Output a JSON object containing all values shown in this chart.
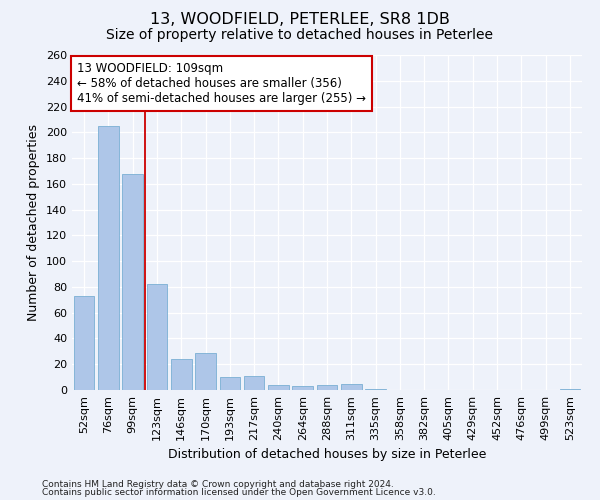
{
  "title": "13, WOODFIELD, PETERLEE, SR8 1DB",
  "subtitle": "Size of property relative to detached houses in Peterlee",
  "xlabel": "Distribution of detached houses by size in Peterlee",
  "ylabel": "Number of detached properties",
  "categories": [
    "52sqm",
    "76sqm",
    "99sqm",
    "123sqm",
    "146sqm",
    "170sqm",
    "193sqm",
    "217sqm",
    "240sqm",
    "264sqm",
    "288sqm",
    "311sqm",
    "335sqm",
    "358sqm",
    "382sqm",
    "405sqm",
    "429sqm",
    "452sqm",
    "476sqm",
    "499sqm",
    "523sqm"
  ],
  "values": [
    73,
    205,
    168,
    82,
    24,
    29,
    10,
    11,
    4,
    3,
    4,
    5,
    1,
    0,
    0,
    0,
    0,
    0,
    0,
    0,
    1
  ],
  "bar_color": "#aec6e8",
  "bar_edge_color": "#7aafd4",
  "vline_x_index": 2.5,
  "vline_color": "#cc0000",
  "annotation_text": "13 WOODFIELD: 109sqm\n← 58% of detached houses are smaller (356)\n41% of semi-detached houses are larger (255) →",
  "annotation_box_color": "#ffffff",
  "annotation_box_edge_color": "#cc0000",
  "ylim": [
    0,
    260
  ],
  "yticks": [
    0,
    20,
    40,
    60,
    80,
    100,
    120,
    140,
    160,
    180,
    200,
    220,
    240,
    260
  ],
  "footnote1": "Contains HM Land Registry data © Crown copyright and database right 2024.",
  "footnote2": "Contains public sector information licensed under the Open Government Licence v3.0.",
  "bg_color": "#eef2fa",
  "grid_color": "#ffffff",
  "title_fontsize": 11.5,
  "subtitle_fontsize": 10,
  "axis_label_fontsize": 9,
  "tick_fontsize": 8,
  "annotation_fontsize": 8.5,
  "footnote_fontsize": 6.5
}
